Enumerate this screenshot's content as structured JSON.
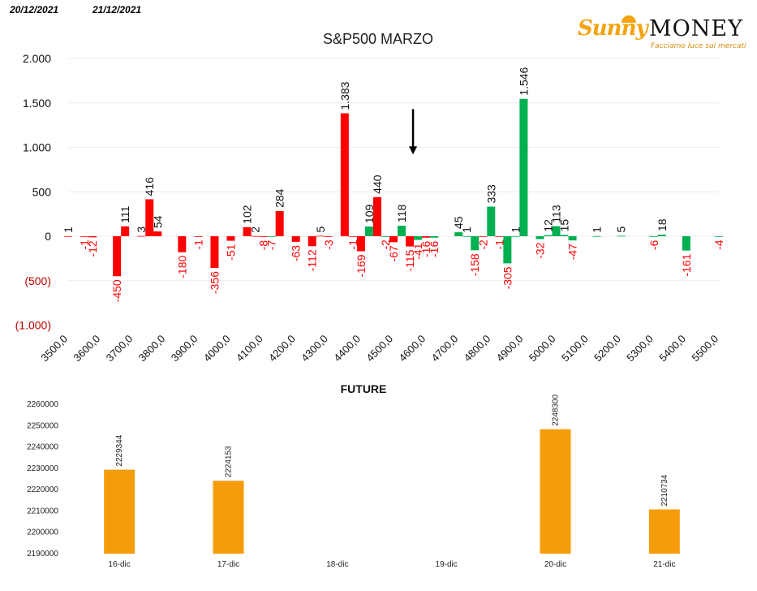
{
  "header": {
    "date_left": "20/12/2021",
    "date_right": "21/12/2021"
  },
  "logo": {
    "name_part1": "Sunny",
    "name_part2": "MONEY",
    "tagline": "Facciamo luce sui mercati"
  },
  "chart_data": [
    {
      "type": "bar",
      "title": "S&P500 MARZO",
      "ylim": [
        -1000,
        2000
      ],
      "yticks": [
        {
          "value": 2000,
          "label": "2.000"
        },
        {
          "value": 1500,
          "label": "1.500"
        },
        {
          "value": 1000,
          "label": "1.000"
        },
        {
          "value": 500,
          "label": "500"
        },
        {
          "value": 0,
          "label": "0"
        },
        {
          "value": -500,
          "label": "(500)"
        },
        {
          "value": -1000,
          "label": "(1.000)"
        }
      ],
      "x_tick_labels": [
        "3500,0",
        "3600,0",
        "3700,0",
        "3800,0",
        "3900,0",
        "4000,0",
        "4100,0",
        "4200,0",
        "4300,0",
        "4400,0",
        "4500,0",
        "4600,0",
        "4700,0",
        "4800,0",
        "4900,0",
        "5000,0",
        "5100,0",
        "5200,0",
        "5300,0",
        "5400,0",
        "5500,0"
      ],
      "x_range": [
        3500,
        5500
      ],
      "grid": true,
      "colors": {
        "red": "#ff0000",
        "green": "#00b050"
      },
      "bars": [
        {
          "x": 3500,
          "value": 1,
          "label": "1",
          "color": "red"
        },
        {
          "x": 3550,
          "value": -1,
          "label": "-1",
          "color": "red"
        },
        {
          "x": 3575,
          "value": -12,
          "label": "-12",
          "color": "red"
        },
        {
          "x": 3650,
          "value": -450,
          "label": "-450",
          "color": "red"
        },
        {
          "x": 3675,
          "value": 111,
          "label": "111",
          "color": "red"
        },
        {
          "x": 3725,
          "value": 3,
          "label": "3",
          "color": "red"
        },
        {
          "x": 3750,
          "value": 416,
          "label": "416",
          "color": "red"
        },
        {
          "x": 3775,
          "value": 54,
          "label": "54",
          "color": "red"
        },
        {
          "x": 3850,
          "value": -180,
          "label": "-180",
          "color": "red"
        },
        {
          "x": 3900,
          "value": -1,
          "label": "-1",
          "color": "red"
        },
        {
          "x": 3950,
          "value": -356,
          "label": "-356",
          "color": "red"
        },
        {
          "x": 4000,
          "value": -51,
          "label": "-51",
          "color": "red"
        },
        {
          "x": 4050,
          "value": 102,
          "label": "102",
          "color": "red"
        },
        {
          "x": 4075,
          "value": 2,
          "label": "2",
          "color": "red"
        },
        {
          "x": 4100,
          "value": -8,
          "label": "-8",
          "color": "red"
        },
        {
          "x": 4125,
          "value": -7,
          "label": "-7",
          "color": "green"
        },
        {
          "x": 4150,
          "value": 284,
          "label": "284",
          "color": "red"
        },
        {
          "x": 4200,
          "value": -63,
          "label": "-63",
          "color": "red"
        },
        {
          "x": 4250,
          "value": -112,
          "label": "-112",
          "color": "red"
        },
        {
          "x": 4275,
          "value": 5,
          "label": "5",
          "color": "red"
        },
        {
          "x": 4300,
          "value": -3,
          "label": "-3",
          "color": "red"
        },
        {
          "x": 4350,
          "value": 1383,
          "label": "1.383",
          "color": "red"
        },
        {
          "x": 4375,
          "value": -1,
          "label": "-1",
          "color": "red"
        },
        {
          "x": 4400,
          "value": -169,
          "label": "-169",
          "color": "red"
        },
        {
          "x": 4425,
          "value": 109,
          "label": "109",
          "color": "green"
        },
        {
          "x": 4450,
          "value": 440,
          "label": "440",
          "color": "red"
        },
        {
          "x": 4475,
          "value": -2,
          "label": "-2",
          "color": "green"
        },
        {
          "x": 4500,
          "value": -67,
          "label": "-67",
          "color": "red"
        },
        {
          "x": 4525,
          "value": 118,
          "label": "118",
          "color": "green"
        },
        {
          "x": 4550,
          "value": -115,
          "label": "-115",
          "color": "red"
        },
        {
          "x": 4575,
          "value": -41,
          "label": "-41",
          "color": "green"
        },
        {
          "x": 4600,
          "value": -16,
          "label": "-16",
          "color": "red"
        },
        {
          "x": 4625,
          "value": -16,
          "label": "-16",
          "color": "green"
        },
        {
          "x": 4700,
          "value": 45,
          "label": "45",
          "color": "green"
        },
        {
          "x": 4725,
          "value": 1,
          "label": "1",
          "color": "green"
        },
        {
          "x": 4750,
          "value": -158,
          "label": "-158",
          "color": "green"
        },
        {
          "x": 4775,
          "value": -2,
          "label": "-2",
          "color": "red"
        },
        {
          "x": 4800,
          "value": 333,
          "label": "333",
          "color": "green"
        },
        {
          "x": 4825,
          "value": -1,
          "label": "-1",
          "color": "red"
        },
        {
          "x": 4850,
          "value": -305,
          "label": "-305",
          "color": "green"
        },
        {
          "x": 4875,
          "value": 1,
          "label": "1",
          "color": "green"
        },
        {
          "x": 4900,
          "value": 1546,
          "label": "1.546",
          "color": "green"
        },
        {
          "x": 4950,
          "value": -32,
          "label": "-32",
          "color": "green"
        },
        {
          "x": 4975,
          "value": 12,
          "label": "12",
          "color": "green"
        },
        {
          "x": 5000,
          "value": 113,
          "label": "113",
          "color": "green"
        },
        {
          "x": 5025,
          "value": 15,
          "label": "15",
          "color": "green"
        },
        {
          "x": 5050,
          "value": -47,
          "label": "-47",
          "color": "green"
        },
        {
          "x": 5125,
          "value": 1,
          "label": "1",
          "color": "green"
        },
        {
          "x": 5200,
          "value": 5,
          "label": "5",
          "color": "green"
        },
        {
          "x": 5300,
          "value": -6,
          "label": "-6",
          "color": "green"
        },
        {
          "x": 5325,
          "value": 18,
          "label": "18",
          "color": "green"
        },
        {
          "x": 5400,
          "value": -161,
          "label": "-161",
          "color": "green"
        },
        {
          "x": 5500,
          "value": -4,
          "label": "-4",
          "color": "green"
        }
      ],
      "annotation": {
        "type": "arrow-down",
        "x": 4560,
        "from": 1430,
        "to": 920
      }
    },
    {
      "type": "bar",
      "title": "FUTURE",
      "ylim": [
        2190000,
        2260000
      ],
      "yticks": [
        2190000,
        2200000,
        2210000,
        2220000,
        2230000,
        2240000,
        2250000,
        2260000
      ],
      "categories": [
        "16-dic",
        "17-dic",
        "18-dic",
        "19-dic",
        "20-dic",
        "21-dic"
      ],
      "values": [
        2229344,
        2224153,
        null,
        null,
        2248300,
        2210734
      ],
      "value_labels": [
        "2229344",
        "2224153",
        "",
        "",
        "2248300",
        "2210734"
      ],
      "color": "#f59c0a"
    }
  ]
}
